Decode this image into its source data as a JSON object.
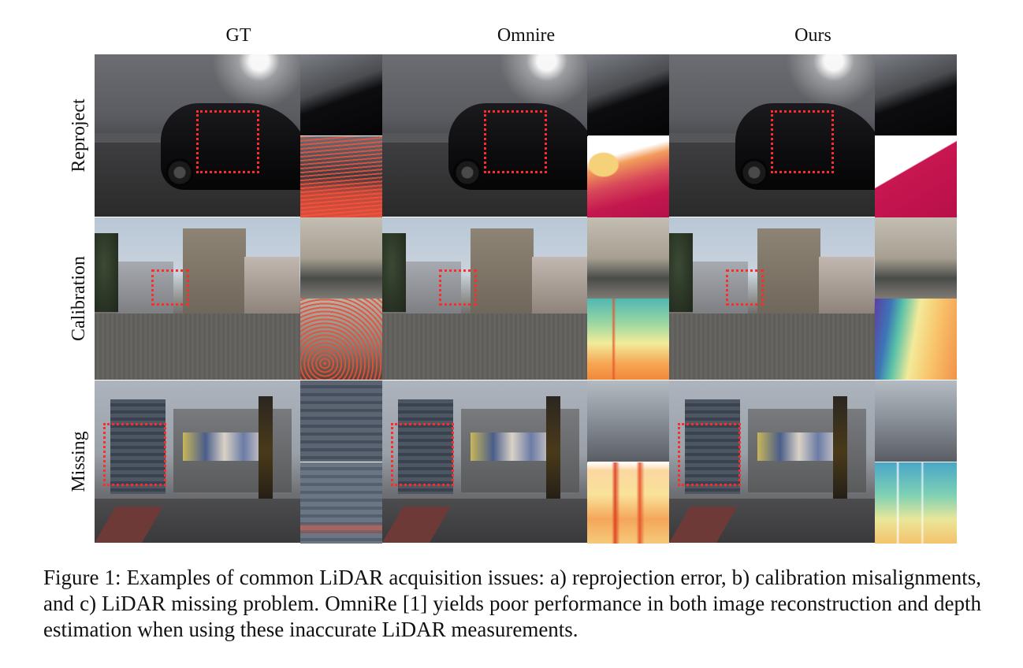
{
  "figure": {
    "columns": [
      "GT",
      "Omnire",
      "Ours"
    ],
    "rows": [
      "Reproject",
      "Calibration",
      "Missing"
    ],
    "caption": "Figure 1: Examples of common LiDAR acquisition issues: a) reprojection error, b) calibration misalignments, and c) LiDAR missing problem. OmniRe [1] yields poor performance in both image reconstruction and depth estimation when using these inaccurate LiDAR measurements.",
    "highlight_color": "#ff2b2b"
  }
}
